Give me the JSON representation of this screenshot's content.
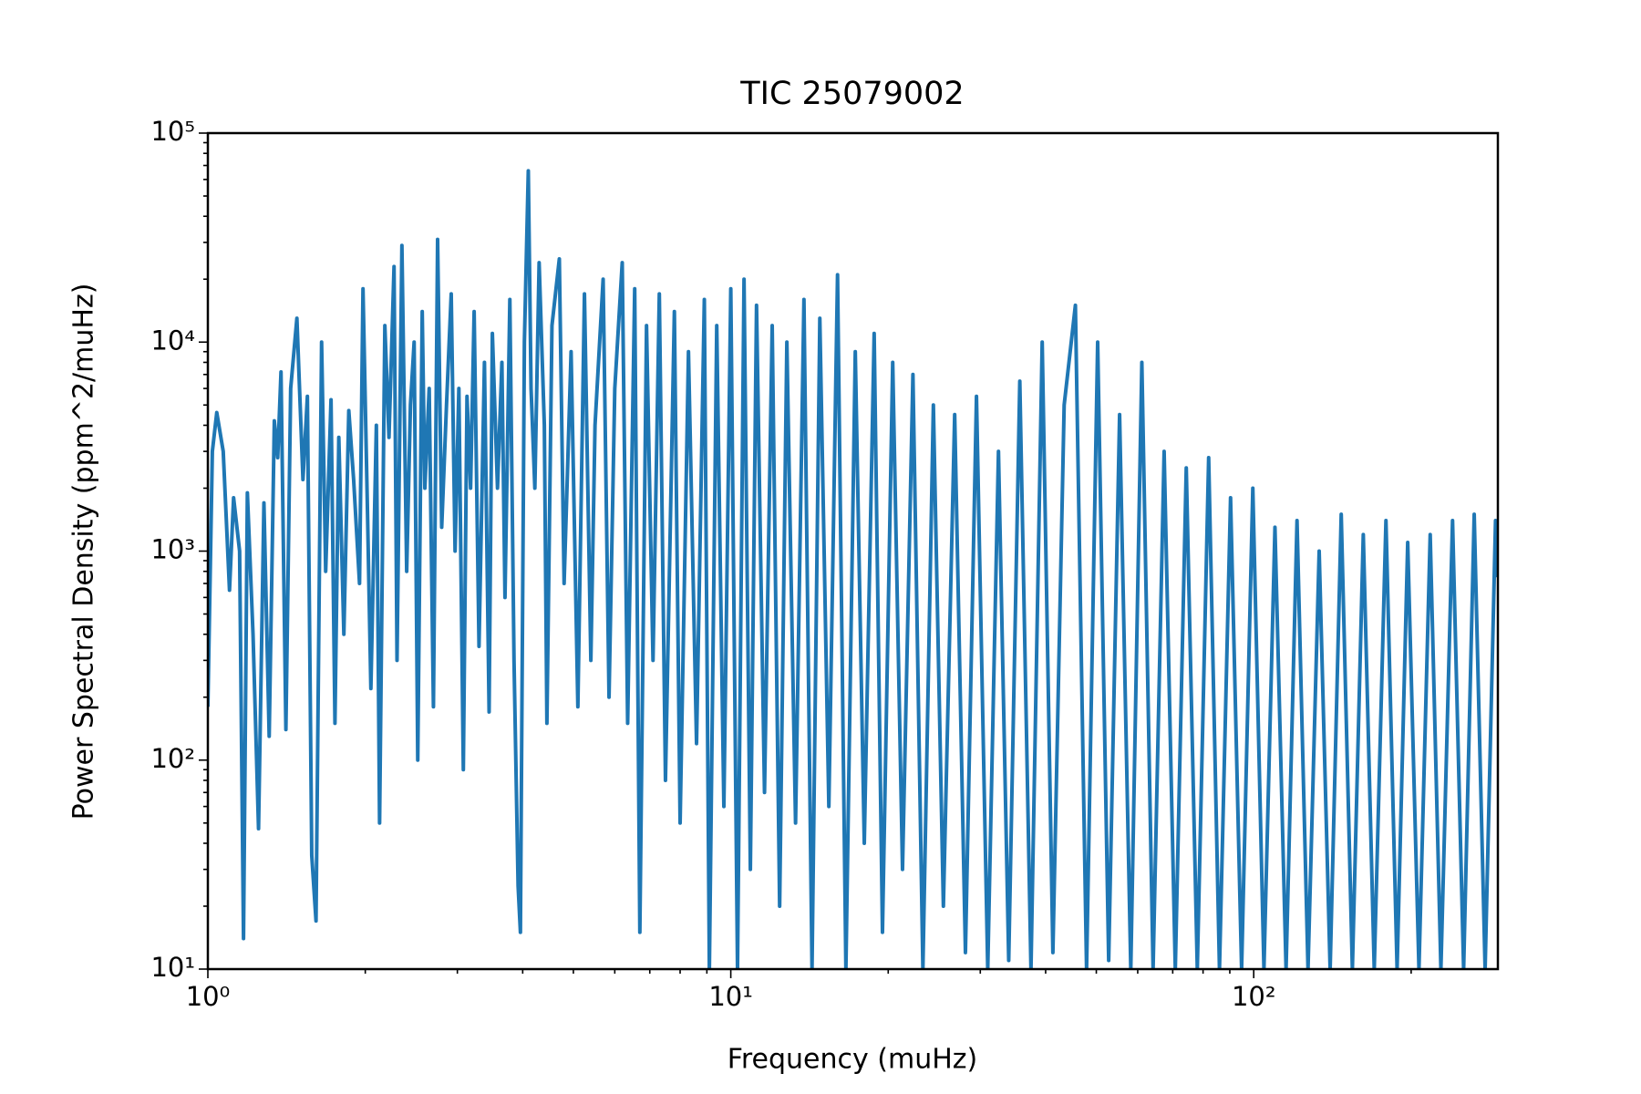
{
  "chart_data": {
    "type": "line",
    "title": "TIC 25079002",
    "xlabel": "Frequency (muHz)",
    "ylabel": "Power Spectral Density (ppm^2/muHz)",
    "xscale": "log",
    "yscale": "log",
    "xlim": [
      1,
      293
    ],
    "ylim": [
      10,
      100000
    ],
    "xticks": [
      {
        "value": 1,
        "label": "10⁰"
      },
      {
        "value": 10,
        "label": "10¹"
      },
      {
        "value": 100,
        "label": "10²"
      }
    ],
    "yticks": [
      {
        "value": 10,
        "label": "10¹"
      },
      {
        "value": 100,
        "label": "10²"
      },
      {
        "value": 1000,
        "label": "10³"
      },
      {
        "value": 10000,
        "label": "10⁴"
      },
      {
        "value": 100000,
        "label": "10⁵"
      }
    ],
    "minor_xticks": [
      2,
      3,
      4,
      5,
      6,
      7,
      8,
      9,
      20,
      30,
      40,
      50,
      60,
      70,
      80,
      90,
      200
    ],
    "minor_yticks": [
      20,
      30,
      40,
      50,
      60,
      70,
      80,
      90,
      200,
      300,
      400,
      500,
      600,
      700,
      800,
      900,
      2000,
      3000,
      4000,
      5000,
      6000,
      7000,
      8000,
      9000,
      20000,
      30000,
      40000,
      50000,
      60000,
      70000,
      80000,
      90000
    ],
    "color": "#1f77b4",
    "x": [
      1.0,
      1.02,
      1.04,
      1.07,
      1.1,
      1.12,
      1.15,
      1.17,
      1.19,
      1.22,
      1.25,
      1.28,
      1.31,
      1.34,
      1.36,
      1.38,
      1.41,
      1.44,
      1.48,
      1.52,
      1.55,
      1.58,
      1.61,
      1.65,
      1.68,
      1.72,
      1.75,
      1.78,
      1.82,
      1.86,
      1.9,
      1.95,
      1.98,
      2.02,
      2.05,
      2.1,
      2.13,
      2.18,
      2.22,
      2.27,
      2.3,
      2.35,
      2.4,
      2.44,
      2.48,
      2.52,
      2.57,
      2.6,
      2.65,
      2.7,
      2.75,
      2.8,
      2.86,
      2.92,
      2.97,
      3.02,
      3.08,
      3.13,
      3.18,
      3.23,
      3.3,
      3.38,
      3.45,
      3.5,
      3.58,
      3.65,
      3.7,
      3.78,
      3.85,
      3.92,
      3.96,
      4.03,
      4.1,
      4.15,
      4.22,
      4.3,
      4.4,
      4.45,
      4.55,
      4.7,
      4.8,
      4.95,
      5.1,
      5.25,
      5.4,
      5.5,
      5.7,
      5.85,
      6.0,
      6.2,
      6.35,
      6.55,
      6.7,
      6.9,
      7.1,
      7.3,
      7.5,
      7.8,
      8.0,
      8.3,
      8.6,
      8.9,
      9.1,
      9.4,
      9.7,
      10.0,
      10.3,
      10.6,
      10.9,
      11.2,
      11.6,
      12.0,
      12.4,
      12.8,
      13.3,
      13.8,
      14.3,
      14.8,
      15.4,
      16.0,
      16.6,
      17.3,
      18.0,
      18.8,
      19.5,
      20.4,
      21.3,
      22.3,
      23.3,
      24.4,
      25.5,
      26.8,
      28.1,
      29.5,
      31,
      32.5,
      34,
      35.7,
      37.5,
      39.4,
      41.3,
      43.4,
      45.6,
      47.9,
      50.3,
      52.8,
      55.4,
      58.2,
      61.1,
      64.2,
      67.4,
      70.8,
      74.3,
      78,
      82,
      86,
      90.3,
      94.8,
      99.6,
      104.6,
      109.8,
      115.3,
      121,
      127,
      133.4,
      140,
      147,
      154.4,
      162,
      170,
      179,
      188,
      197,
      207,
      217.5,
      228,
      240,
      252,
      264,
      277,
      290,
      293
    ],
    "values": [
      180,
      3000,
      4600,
      3000,
      650,
      1800,
      1000,
      14,
      1900,
      400,
      47,
      1700,
      130,
      4200,
      2800,
      7200,
      140,
      6000,
      13000,
      2200,
      5500,
      35,
      17,
      10000,
      800,
      5300,
      150,
      3500,
      400,
      4700,
      2200,
      700,
      18000,
      1500,
      220,
      4000,
      50,
      12000,
      3500,
      23000,
      300,
      29000,
      800,
      5000,
      10000,
      100,
      14000,
      2000,
      6000,
      180,
      31000,
      1300,
      5000,
      17000,
      1000,
      6000,
      90,
      5500,
      2000,
      14000,
      350,
      8000,
      170,
      11000,
      2000,
      8000,
      600,
      16000,
      300,
      25,
      15,
      10000,
      66000,
      6000,
      2000,
      24000,
      4000,
      150,
      12000,
      25000,
      700,
      9000,
      180,
      17000,
      300,
      4000,
      20000,
      200,
      6000,
      24000,
      150,
      18000,
      15,
      12000,
      300,
      17000,
      80,
      14000,
      50,
      9000,
      120,
      16000,
      10,
      12000,
      60,
      18000,
      10,
      20000,
      30,
      15000,
      70,
      12000,
      20,
      10000,
      50,
      16000,
      10,
      13000,
      60,
      21000,
      10,
      9000,
      40,
      11000,
      15,
      8000,
      30,
      7000,
      10,
      5000,
      20,
      4500,
      12,
      5500,
      10,
      3000,
      11,
      6500,
      10,
      10000,
      12,
      5000,
      15000,
      10,
      10000,
      11,
      4500,
      10,
      8000,
      10,
      3000,
      10,
      2500,
      10,
      2800,
      10,
      1800,
      10,
      2000,
      10,
      1300,
      10,
      1400,
      10,
      1000,
      10,
      1500,
      10,
      1200,
      10,
      1400,
      10,
      1100,
      10,
      1200,
      10,
      1400,
      10,
      1500,
      10,
      1400,
      750
    ]
  }
}
